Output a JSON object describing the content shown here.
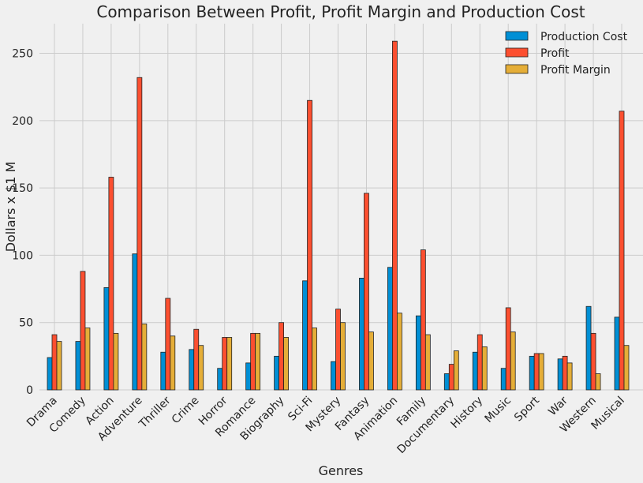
{
  "chart_data": {
    "type": "bar",
    "title": "Comparison Between Profit, Profit Margin and Production Cost",
    "xlabel": "Genres",
    "ylabel": "Dollars x $1 M",
    "ylim": [
      0,
      272
    ],
    "yticks": [
      0,
      50,
      100,
      150,
      200,
      250
    ],
    "grid": true,
    "legend_position": "top-right",
    "categories": [
      "Drama",
      "Comedy",
      "Action",
      "Adventure",
      "Thriller",
      "Crime",
      "Horror",
      "Romance",
      "Biography",
      "Sci-Fi",
      "Mystery",
      "Fantasy",
      "Animation",
      "Family",
      "Documentary",
      "History",
      "Music",
      "Sport",
      "War",
      "Western",
      "Musical"
    ],
    "series": [
      {
        "name": "Production Cost",
        "color": "#008fd5",
        "values": [
          24,
          36,
          76,
          101,
          28,
          30,
          16,
          20,
          25,
          81,
          21,
          83,
          91,
          55,
          12,
          28,
          16,
          25,
          23,
          62,
          54
        ]
      },
      {
        "name": "Profit",
        "color": "#fc4f30",
        "values": [
          41,
          88,
          158,
          232,
          68,
          45,
          39,
          42,
          50,
          215,
          60,
          146,
          259,
          104,
          19,
          41,
          61,
          27,
          25,
          42,
          207
        ]
      },
      {
        "name": "Profit Margin",
        "color": "#e5ae38",
        "values": [
          36,
          46,
          42,
          49,
          40,
          33,
          39,
          42,
          39,
          46,
          50,
          43,
          57,
          41,
          29,
          32,
          43,
          27,
          20,
          12,
          33
        ]
      }
    ]
  }
}
